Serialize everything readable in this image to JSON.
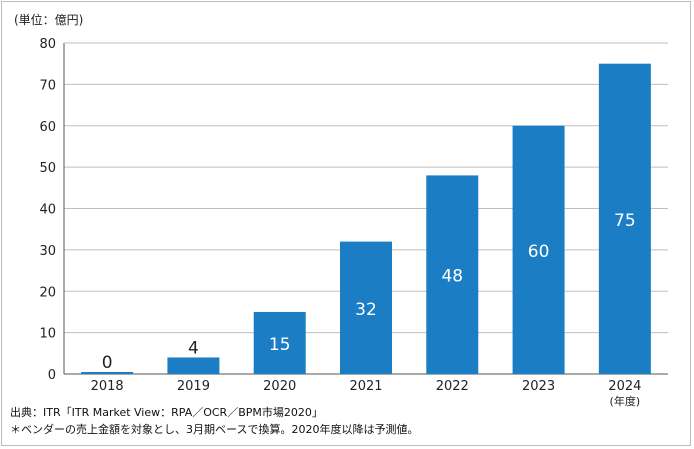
{
  "chart_data": {
    "type": "bar",
    "unit_label": "(単位：億円)",
    "categories": [
      "2018",
      "2019",
      "2020",
      "2021",
      "2022",
      "2023",
      "2024"
    ],
    "values": [
      0,
      4,
      15,
      32,
      48,
      60,
      75
    ],
    "data_labels": [
      "0",
      "4",
      "15",
      "32",
      "48",
      "60",
      "75"
    ],
    "x_suffix_label": "(年度)",
    "ylim": [
      0,
      80
    ],
    "yticks": [
      0,
      10,
      20,
      30,
      40,
      50,
      60,
      70,
      80
    ],
    "grid": true,
    "bar_color": "#1b7ec4"
  },
  "footnotes": {
    "source": "出典：ITR「ITR Market View：RPA／OCR／BPM市場2020」",
    "note": "＊ベンダーの売上金額を対象とし、3月期ベースで換算。2020年度以降は予測値。"
  }
}
